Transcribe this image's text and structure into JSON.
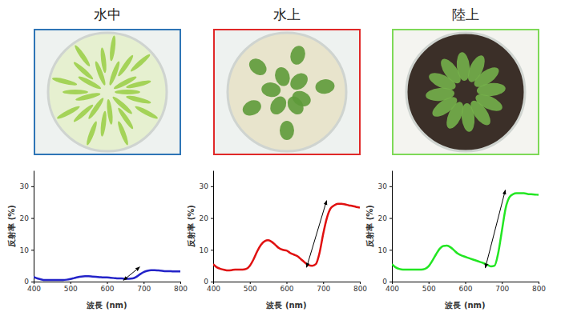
{
  "chart_data": [
    {
      "type": "line",
      "title": "水中",
      "x_label": "波長 (nm)",
      "y_label": "反射率 (%)",
      "x": [
        400,
        410,
        420,
        430,
        440,
        450,
        460,
        470,
        480,
        490,
        500,
        510,
        520,
        530,
        540,
        550,
        560,
        570,
        580,
        590,
        600,
        610,
        620,
        630,
        640,
        650,
        660,
        670,
        680,
        690,
        700,
        710,
        720,
        730,
        740,
        750,
        760,
        770,
        780,
        790,
        800
      ],
      "values": [
        1.5,
        1.0,
        0.7,
        0.5,
        0.5,
        0.5,
        0.5,
        0.5,
        0.5,
        0.6,
        0.8,
        1.1,
        1.4,
        1.6,
        1.7,
        1.7,
        1.6,
        1.5,
        1.4,
        1.3,
        1.3,
        1.2,
        1.1,
        1.0,
        1.0,
        0.9,
        0.9,
        1.0,
        1.5,
        2.3,
        3.0,
        3.4,
        3.6,
        3.6,
        3.5,
        3.4,
        3.3,
        3.3,
        3.2,
        3.2,
        3.2
      ],
      "color": "#2323c8",
      "xlim": [
        400,
        800
      ],
      "xticks": [
        400,
        500,
        600,
        700,
        800
      ],
      "ylim": [
        0,
        35
      ],
      "yticks": [
        0,
        10,
        20,
        30
      ],
      "grid": false
    },
    {
      "type": "line",
      "title": "水上",
      "x_label": "波長 (nm)",
      "y_label": "反射率 (%)",
      "x": [
        400,
        410,
        420,
        430,
        440,
        450,
        460,
        470,
        480,
        490,
        500,
        510,
        520,
        530,
        540,
        550,
        560,
        570,
        580,
        590,
        600,
        610,
        620,
        630,
        640,
        650,
        660,
        670,
        680,
        690,
        700,
        710,
        720,
        730,
        740,
        750,
        760,
        770,
        780,
        790,
        800
      ],
      "values": [
        5.5,
        4.5,
        4.0,
        3.7,
        3.5,
        3.6,
        3.8,
        3.8,
        3.8,
        4.0,
        5.0,
        7.0,
        9.5,
        11.5,
        12.7,
        13.0,
        12.5,
        11.5,
        10.5,
        10.0,
        9.8,
        9.0,
        8.5,
        8.0,
        7.0,
        6.0,
        5.2,
        5.0,
        5.5,
        9.0,
        15.0,
        20.0,
        23.0,
        24.0,
        24.5,
        24.5,
        24.3,
        24.0,
        23.8,
        23.5,
        23.3
      ],
      "color": "#e01010",
      "xlim": [
        400,
        800
      ],
      "xticks": [
        400,
        500,
        600,
        700,
        800
      ],
      "ylim": [
        0,
        35
      ],
      "yticks": [
        0,
        10,
        20,
        30
      ],
      "grid": false
    },
    {
      "type": "line",
      "title": "陸上",
      "x_label": "波長 (nm)",
      "y_label": "反射率 (%)",
      "x": [
        400,
        410,
        420,
        430,
        440,
        450,
        460,
        470,
        480,
        490,
        500,
        510,
        520,
        530,
        540,
        550,
        560,
        570,
        580,
        590,
        600,
        610,
        620,
        630,
        640,
        650,
        660,
        670,
        680,
        690,
        700,
        710,
        720,
        730,
        740,
        750,
        760,
        770,
        780,
        790,
        800
      ],
      "values": [
        5.5,
        4.5,
        4.0,
        3.8,
        3.8,
        3.8,
        3.8,
        3.8,
        3.8,
        4.0,
        4.8,
        6.5,
        8.5,
        10.3,
        11.2,
        11.3,
        10.8,
        9.8,
        8.8,
        8.2,
        7.8,
        7.4,
        7.0,
        6.6,
        6.2,
        5.8,
        5.3,
        4.8,
        5.0,
        9.0,
        16.0,
        23.0,
        26.5,
        27.5,
        27.8,
        27.8,
        27.8,
        27.6,
        27.5,
        27.4,
        27.3
      ],
      "color": "#22e622",
      "xlim": [
        400,
        800
      ],
      "xticks": [
        400,
        500,
        600,
        700,
        800
      ],
      "ylim": [
        0,
        35
      ],
      "yticks": [
        0,
        10,
        20,
        30
      ],
      "grid": false
    }
  ]
}
